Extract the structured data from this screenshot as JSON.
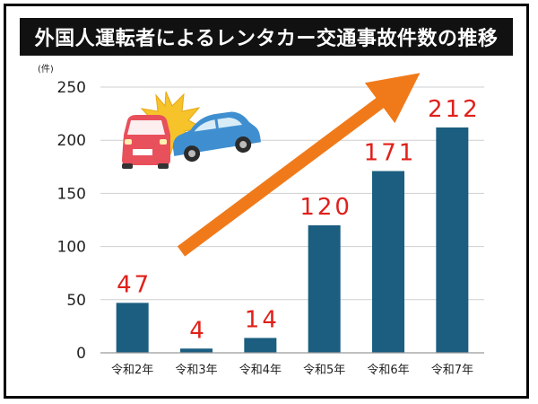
{
  "title": "外国人運転者によるレンタカー交通事故件数の推移",
  "colors": {
    "bar": "#1b5e80",
    "label": "#e0201a",
    "arrow": "#f07a1a",
    "grid": "#cfcfcf"
  },
  "icons": [
    "car-crash-illustration",
    "trend-arrow"
  ],
  "chart_data": {
    "type": "bar",
    "categories": [
      "令和2年",
      "令和3年",
      "令和4年",
      "令和5年",
      "令和6年",
      "令和7年"
    ],
    "values": [
      47,
      4,
      14,
      120,
      171,
      212
    ],
    "data_labels": [
      "47",
      "4",
      "14",
      "120",
      "171",
      "212"
    ],
    "y_unit": "(件)",
    "y_ticks": [
      "0",
      "50",
      "100",
      "150",
      "200",
      "250"
    ],
    "ylim": [
      0,
      250
    ],
    "grid": true,
    "legend": "none"
  }
}
